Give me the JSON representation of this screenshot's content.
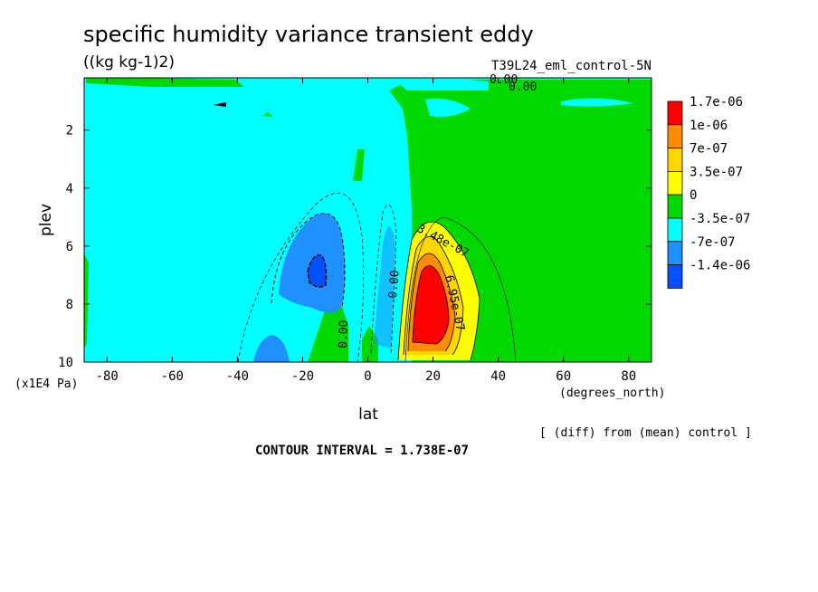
{
  "title": "specific humidity variance transient eddy",
  "units": "((kg kg-1)2)",
  "run_label": "T39L24_eml_control-5N",
  "diff_note": "[ (diff) from (mean) control ]",
  "contour_interval": "CONTOUR INTERVAL = 1.738E-07",
  "chart_data": {
    "type": "heatmap",
    "title": "specific humidity variance transient eddy",
    "xlabel": "lat",
    "xunit": "(degrees_north)",
    "ylabel": "plev",
    "yunit": "(x1E4 Pa)",
    "xlim": [
      -87,
      87
    ],
    "ylim": [
      10,
      0.2
    ],
    "x_ticks": [
      -80,
      -60,
      -40,
      -20,
      0,
      20,
      40,
      60,
      80
    ],
    "x_tick_labels": [
      "-80",
      "-60",
      "-40",
      "-20",
      "0",
      "20",
      "40",
      "60",
      "80"
    ],
    "y_ticks": [
      2,
      4,
      6,
      8,
      10
    ],
    "y_tick_labels": [
      "2",
      "4",
      "6",
      "8",
      "10"
    ],
    "legend": {
      "placement": "right",
      "labels": [
        "1.7e-06",
        "1e-06",
        "7e-07",
        "3.5e-07",
        "0",
        "-3.5e-07",
        "-7e-07",
        "-1.4e-06"
      ],
      "colors": [
        "#ff0000",
        "#ff8c00",
        "#ffd700",
        "#ffff00",
        "#00d800",
        "#00ffff",
        "#1e90ff",
        "#0050ff"
      ]
    },
    "contour_labels": [
      "0.00",
      "0.00",
      "3.48e-07",
      "6.95e-07",
      "0.00",
      "0.00"
    ],
    "features": [
      {
        "kind": "positive_max",
        "lat": 18,
        "plev": 8.2,
        "value": 1.7e-06
      },
      {
        "kind": "negative_min",
        "lat": -16,
        "plev": 7.0,
        "value": -1.4e-06
      },
      {
        "kind": "negative_min",
        "lat": -30,
        "plev": 9.7,
        "value": -7e-07
      }
    ]
  }
}
